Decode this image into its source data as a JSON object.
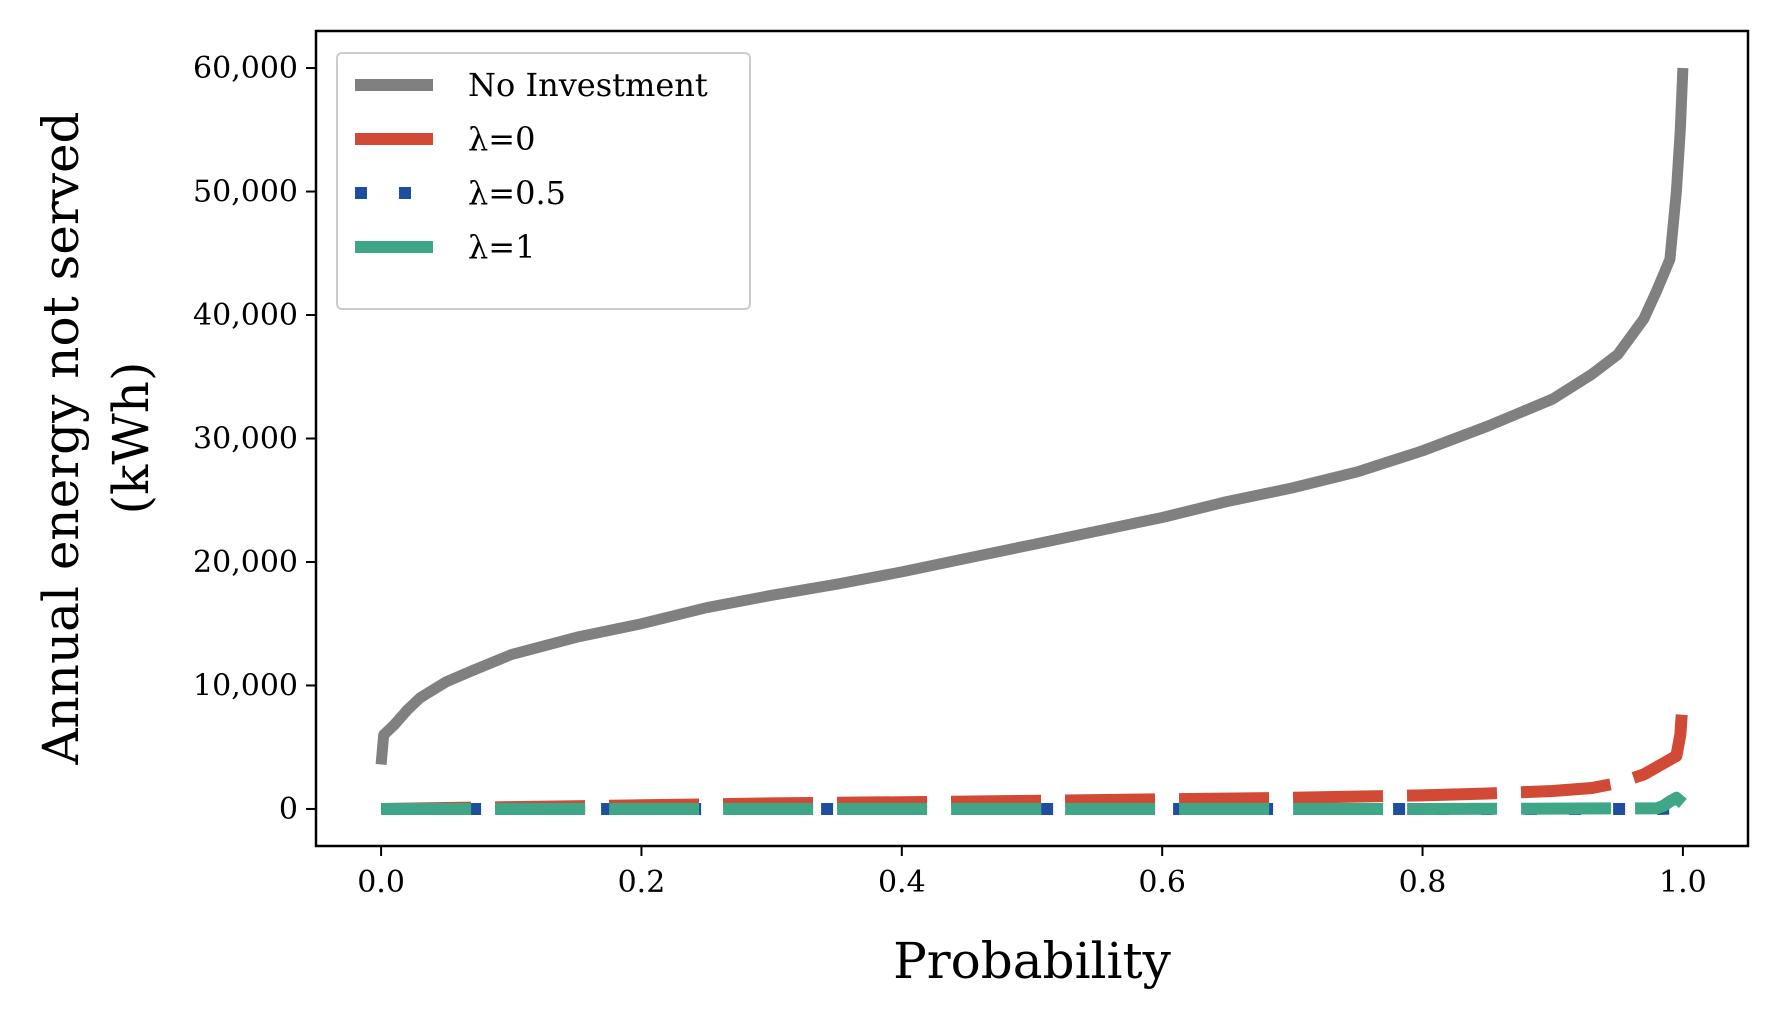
{
  "chart_data": {
    "type": "line",
    "title": "",
    "xlabel": "Probability",
    "ylabel": "Annual energy not served",
    "ylabel_unit": "(kWh)",
    "xlim": [
      -0.05,
      1.05
    ],
    "ylim": [
      -3000,
      63000
    ],
    "xticks": [
      0.0,
      0.2,
      0.4,
      0.6,
      0.8,
      1.0
    ],
    "xtick_labels": [
      "0.0",
      "0.2",
      "0.4",
      "0.6",
      "0.8",
      "1.0"
    ],
    "yticks": [
      0,
      10000,
      20000,
      30000,
      40000,
      50000,
      60000
    ],
    "ytick_labels": [
      "0",
      "10,000",
      "20,000",
      "30,000",
      "40,000",
      "50,000",
      "60,000"
    ],
    "grid": false,
    "legend_position": "top-left",
    "series": [
      {
        "name": "No Investment",
        "color": "#808080",
        "style": "solid",
        "points": [
          [
            0.0,
            3600
          ],
          [
            0.002,
            6000
          ],
          [
            0.01,
            6800
          ],
          [
            0.02,
            8000
          ],
          [
            0.03,
            9000
          ],
          [
            0.05,
            10300
          ],
          [
            0.07,
            11200
          ],
          [
            0.1,
            12500
          ],
          [
            0.15,
            13900
          ],
          [
            0.2,
            15000
          ],
          [
            0.25,
            16300
          ],
          [
            0.3,
            17300
          ],
          [
            0.35,
            18200
          ],
          [
            0.4,
            19200
          ],
          [
            0.45,
            20300
          ],
          [
            0.5,
            21400
          ],
          [
            0.55,
            22500
          ],
          [
            0.6,
            23600
          ],
          [
            0.65,
            24900
          ],
          [
            0.7,
            26000
          ],
          [
            0.75,
            27300
          ],
          [
            0.8,
            29000
          ],
          [
            0.85,
            31000
          ],
          [
            0.9,
            33200
          ],
          [
            0.93,
            35200
          ],
          [
            0.95,
            36800
          ],
          [
            0.97,
            39700
          ],
          [
            0.98,
            42000
          ],
          [
            0.99,
            44500
          ],
          [
            0.995,
            50000
          ],
          [
            0.998,
            55000
          ],
          [
            1.0,
            60000
          ]
        ]
      },
      {
        "name": "λ=0",
        "color": "#d04a35",
        "style": "dashed",
        "points": [
          [
            0.0,
            0
          ],
          [
            0.1,
            150
          ],
          [
            0.2,
            300
          ],
          [
            0.3,
            450
          ],
          [
            0.4,
            550
          ],
          [
            0.5,
            650
          ],
          [
            0.6,
            780
          ],
          [
            0.7,
            900
          ],
          [
            0.8,
            1100
          ],
          [
            0.85,
            1250
          ],
          [
            0.9,
            1450
          ],
          [
            0.93,
            1700
          ],
          [
            0.95,
            2100
          ],
          [
            0.97,
            2800
          ],
          [
            0.985,
            3700
          ],
          [
            0.995,
            4300
          ],
          [
            0.998,
            6000
          ],
          [
            1.0,
            9000
          ]
        ]
      },
      {
        "name": "λ=0.5",
        "color": "#1f4e9e",
        "style": "dotted",
        "points": [
          [
            0.0,
            0
          ],
          [
            0.5,
            0
          ],
          [
            0.9,
            0
          ],
          [
            0.98,
            0
          ],
          [
            1.0,
            50
          ]
        ]
      },
      {
        "name": "λ=1",
        "color": "#3fa688",
        "style": "dashed",
        "points": [
          [
            0.0,
            0
          ],
          [
            0.2,
            0
          ],
          [
            0.4,
            0
          ],
          [
            0.6,
            0
          ],
          [
            0.8,
            0
          ],
          [
            0.98,
            50
          ],
          [
            0.985,
            250
          ],
          [
            0.99,
            600
          ],
          [
            0.995,
            900
          ],
          [
            1.0,
            450
          ]
        ]
      }
    ]
  }
}
